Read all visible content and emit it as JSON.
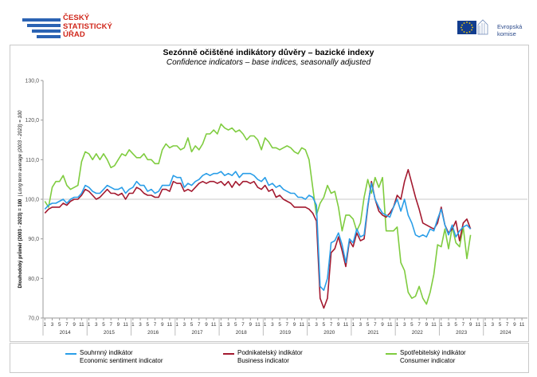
{
  "header": {
    "csu_lines": [
      "ČESKÝ",
      "STATISTICKÝ",
      "ÚŘAD"
    ],
    "eu_lines": [
      "Evropská",
      "komise"
    ]
  },
  "title": "Sezónně očištěné indikátory důvěry – bazické indexy",
  "subtitle": "Confidence indicators – base indices, seasonally adjusted",
  "legend": [
    {
      "cz": "Souhrnný indikátor",
      "en": "Economic sentiment indicator",
      "color": "#2a9ee8"
    },
    {
      "cz": "Podnikatelský indikátor",
      "en": "Business indicator",
      "color": "#a3192f"
    },
    {
      "cz": "Spotřebitelský indikátor",
      "en": "Consumer indicator",
      "color": "#7fcc3f"
    }
  ],
  "chart_data": {
    "type": "line",
    "ylabel_bold": "Dlouhodobý průměr (2003 - 2023) = 100",
    "ylabel_italic": "Long term average (2003 - 2023) = 100",
    "ylim": [
      70,
      130
    ],
    "yticks": [
      "70,0",
      "80,0",
      "90,0",
      "100,0",
      "110,0",
      "120,0",
      "130,0"
    ],
    "month_ticks": [
      "1",
      "3",
      "5",
      "7",
      "9",
      "11"
    ],
    "years": [
      "2014",
      "2015",
      "2016",
      "2017",
      "2018",
      "2019",
      "2020",
      "2021",
      "2022",
      "2023",
      "2024"
    ],
    "reference_line": 100,
    "x_start": "2014-01",
    "series": [
      {
        "name": "Souhrnný indikátor",
        "values": [
          97.5,
          98.5,
          99.0,
          99.0,
          99.5,
          100.0,
          99.0,
          100.0,
          100.5,
          100.5,
          101.5,
          103.5,
          103.0,
          102.0,
          101.5,
          101.5,
          102.5,
          103.5,
          103.0,
          102.5,
          102.5,
          103.0,
          101.5,
          102.5,
          103.0,
          104.5,
          103.5,
          103.5,
          102.0,
          102.5,
          101.5,
          102.0,
          103.5,
          103.5,
          103.5,
          106.0,
          105.5,
          105.5,
          103.0,
          104.0,
          103.5,
          104.5,
          105.0,
          106.0,
          106.5,
          106.0,
          106.5,
          106.5,
          107.0,
          106.0,
          106.5,
          106.0,
          107.0,
          105.5,
          106.5,
          106.5,
          106.5,
          106.0,
          105.0,
          104.5,
          105.5,
          103.5,
          104.0,
          103.0,
          103.5,
          102.5,
          102.0,
          101.5,
          101.5,
          100.5,
          100.5,
          100.0,
          101.0,
          100.5,
          98.5,
          78.0,
          77.0,
          80.0,
          89.0,
          89.5,
          91.5,
          88.5,
          84.0,
          90.0,
          89.0,
          92.5,
          90.5,
          91.0,
          98.5,
          104.0,
          100.0,
          98.0,
          96.5,
          96.0,
          95.5,
          98.0,
          100.0,
          97.0,
          100.0,
          96.0,
          94.0,
          91.0,
          90.5,
          91.0,
          90.5,
          92.5,
          92.0,
          95.0,
          97.5,
          93.5,
          91.0,
          93.5,
          90.5,
          92.0,
          93.0,
          93.5,
          92.5
        ]
      },
      {
        "name": "Podnikatelský indikátor",
        "values": [
          96.5,
          97.5,
          98.0,
          98.0,
          98.0,
          99.0,
          98.5,
          99.5,
          100.0,
          100.0,
          101.0,
          102.5,
          102.0,
          101.0,
          100.0,
          100.5,
          101.5,
          102.5,
          101.5,
          101.5,
          101.0,
          101.5,
          100.0,
          101.5,
          101.5,
          103.0,
          102.5,
          101.5,
          101.0,
          101.0,
          100.5,
          100.5,
          102.5,
          102.5,
          102.0,
          104.5,
          104.0,
          104.0,
          102.0,
          102.5,
          102.0,
          103.0,
          104.0,
          104.5,
          104.0,
          104.5,
          104.5,
          104.0,
          104.5,
          103.5,
          104.5,
          103.0,
          104.5,
          103.5,
          104.5,
          104.5,
          104.0,
          104.5,
          103.0,
          102.5,
          103.5,
          102.0,
          102.5,
          100.5,
          101.0,
          100.0,
          99.5,
          99.0,
          98.0,
          98.0,
          98.0,
          98.0,
          97.5,
          96.5,
          94.5,
          75.0,
          72.5,
          75.0,
          86.5,
          87.5,
          90.5,
          87.0,
          83.0,
          89.5,
          88.0,
          91.5,
          89.5,
          90.0,
          98.0,
          104.5,
          100.0,
          97.0,
          96.0,
          95.5,
          96.5,
          98.0,
          101.0,
          100.0,
          104.5,
          107.5,
          104.0,
          100.5,
          97.5,
          94.0,
          93.5,
          93.0,
          92.5,
          94.0,
          98.0,
          93.5,
          91.5,
          92.5,
          94.5,
          89.5,
          94.0,
          95.0,
          92.5
        ]
      },
      {
        "name": "Spotřebitelský indikátor",
        "values": [
          99.5,
          98.0,
          103.0,
          104.5,
          104.5,
          106.0,
          103.5,
          102.5,
          103.0,
          103.5,
          109.5,
          112.0,
          111.5,
          110.0,
          111.5,
          110.0,
          111.5,
          110.0,
          108.0,
          108.5,
          110.0,
          111.5,
          111.0,
          112.5,
          111.5,
          110.5,
          110.5,
          111.5,
          110.0,
          110.0,
          109.0,
          109.0,
          112.5,
          114.0,
          113.0,
          113.5,
          113.5,
          112.5,
          113.0,
          115.5,
          112.0,
          113.5,
          112.5,
          114.0,
          116.5,
          116.5,
          117.5,
          116.5,
          119.0,
          118.0,
          117.5,
          118.0,
          117.0,
          117.5,
          116.5,
          115.0,
          116.0,
          116.0,
          115.0,
          112.5,
          115.5,
          114.5,
          113.0,
          113.0,
          112.5,
          113.0,
          113.5,
          113.0,
          112.0,
          111.5,
          113.0,
          112.5,
          110.0,
          103.0,
          96.0,
          99.0,
          100.5,
          103.5,
          101.5,
          102.0,
          98.0,
          92.0,
          96.0,
          96.0,
          95.0,
          92.0,
          94.0,
          100.5,
          105.0,
          101.5,
          105.5,
          103.0,
          105.5,
          92.0,
          92.0,
          92.0,
          93.0,
          84.0,
          82.0,
          76.5,
          75.0,
          75.5,
          78.0,
          75.0,
          73.5,
          76.5,
          81.0,
          88.5,
          88.0,
          92.5,
          87.5,
          93.0,
          89.0,
          88.0,
          93.0,
          85.0,
          91.0
        ]
      }
    ]
  }
}
